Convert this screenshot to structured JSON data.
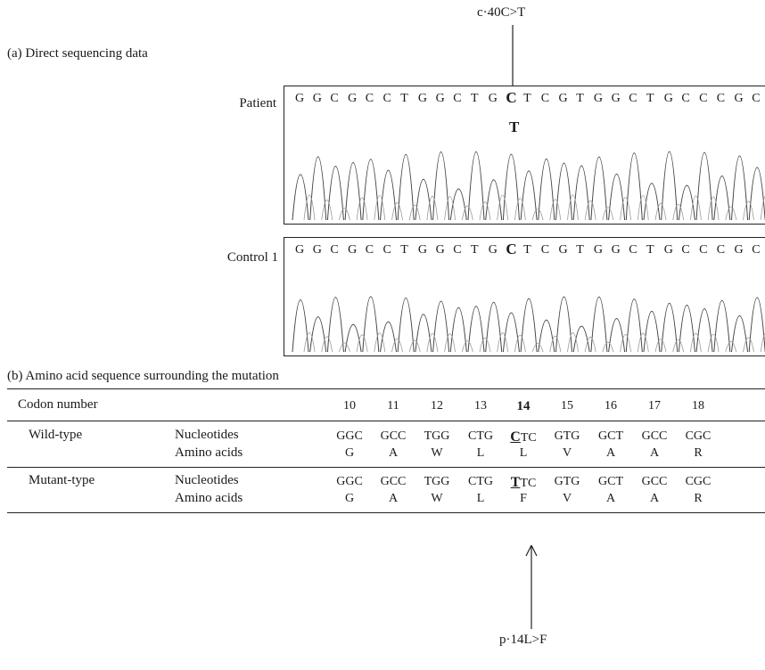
{
  "figure": {
    "mutation_label": "c·40C>T",
    "panel_a_caption": "(a)  Direct sequencing data",
    "patient_label": "Patient",
    "control_label": "Control 1",
    "sequence": [
      "G",
      "G",
      "C",
      "G",
      "C",
      "C",
      "T",
      "G",
      "G",
      "C",
      "T",
      "G",
      "C",
      "T",
      "C",
      "G",
      "T",
      "G",
      "G",
      "C",
      "T",
      "G",
      "C",
      "C",
      "C",
      "G",
      "C"
    ],
    "mutant_base": "T",
    "panel_b_caption": "(b)  Amino acid sequence surrounding the mutation",
    "protein_label": "p·14L>F"
  },
  "table": {
    "codon_header": "Codon number",
    "codon_numbers": [
      "10",
      "11",
      "12",
      "13",
      "14",
      "15",
      "16",
      "17",
      "18"
    ],
    "rows": [
      {
        "group": "Wild-type",
        "nuc_label": "Nucleotides",
        "aa_label": "Amino acids",
        "nucleotides": [
          "GGC",
          "GCC",
          "TGG",
          "CTG",
          "CTC",
          "GTG",
          "GCT",
          "GCC",
          "CGC"
        ],
        "mut_first": "C",
        "mut_rest": "TC",
        "amino_acids": [
          "G",
          "A",
          "W",
          "L",
          "L",
          "V",
          "A",
          "A",
          "R"
        ]
      },
      {
        "group": "Mutant-type",
        "nuc_label": "Nucleotides",
        "aa_label": "Amino acids",
        "nucleotides": [
          "GGC",
          "GCC",
          "TGG",
          "CTG",
          "TTC",
          "GTG",
          "GCT",
          "GCC",
          "CGC"
        ],
        "mut_first": "T",
        "mut_rest": "TC",
        "amino_acids": [
          "G",
          "A",
          "W",
          "L",
          "F",
          "V",
          "A",
          "A",
          "R"
        ]
      }
    ]
  }
}
